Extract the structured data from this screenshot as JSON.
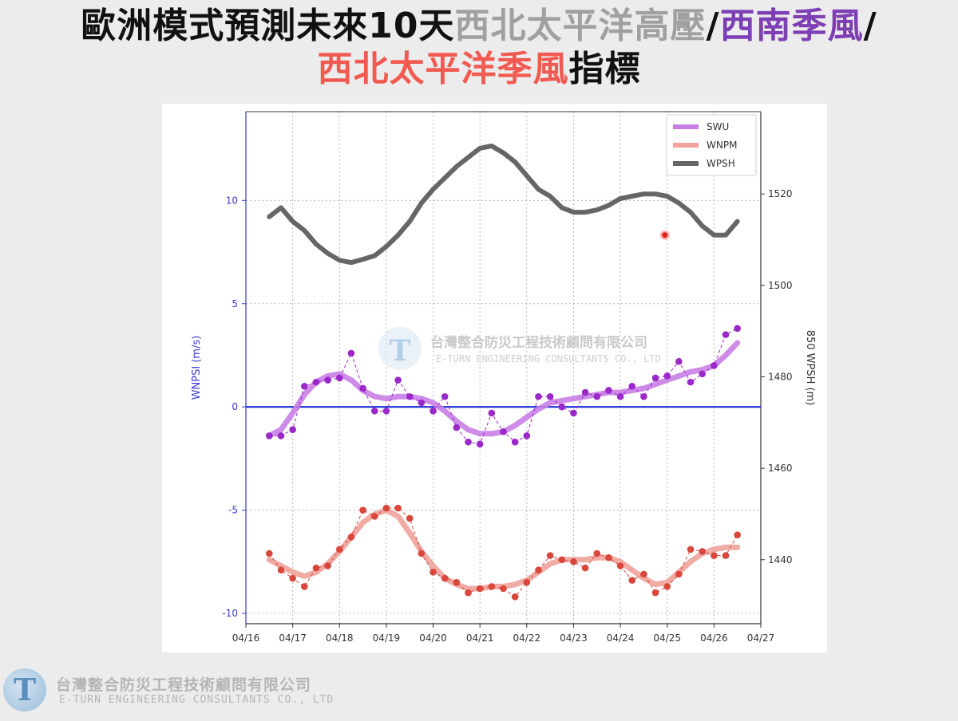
{
  "title": {
    "line1_black": "歐洲模式預測未來10天",
    "line1_gray": "西北太平洋高壓",
    "sep1": "/",
    "line1_purple": "西南季風",
    "sep2": "/",
    "line2_red": "西北太平洋季風",
    "line2_black": "指標",
    "colors": {
      "gray": "#a0a0a0",
      "purple": "#7d3fb3",
      "red": "#f05a50"
    }
  },
  "watermark": {
    "cn": "台灣整合防災工程技術顧問有限公司",
    "en": "E-TURN ENGINEERING CONSULTANTS CO., LTD"
  },
  "footer": {
    "logo_letter": "T",
    "cn": "台灣整合防災工程技術顧問有限公司",
    "en": "E-TURN ENGINEERING CONSULTANTS CO., LTD"
  },
  "chart_data": {
    "type": "line",
    "ylabel": "WNPSI (m/s)",
    "y2label": "850 WPSH (m)",
    "x_ticks": [
      "04/16",
      "04/17",
      "04/18",
      "04/19",
      "04/20",
      "04/21",
      "04/22",
      "04/23",
      "04/24",
      "04/25",
      "04/26",
      "04/27"
    ],
    "xlim": [
      0,
      11
    ],
    "ylim": [
      -10.5,
      14.3
    ],
    "y_ticks": [
      10,
      5,
      0,
      -5,
      -10
    ],
    "y2lim": [
      1426,
      1538
    ],
    "y2_ticks": [
      1520,
      1500,
      1480,
      1460,
      1440
    ],
    "zero_line": 0,
    "grid": true,
    "legend_position": "top-right",
    "series": [
      {
        "name": "SWU",
        "axis": "left",
        "color": "#c97fe6",
        "smooth_x": [
          0.5,
          0.75,
          1.0,
          1.25,
          1.5,
          1.75,
          2.0,
          2.25,
          2.5,
          2.75,
          3.0,
          3.25,
          3.5,
          3.75,
          4.0,
          4.25,
          4.5,
          4.75,
          5.0,
          5.25,
          5.5,
          5.75,
          6.0,
          6.25,
          6.5,
          6.75,
          7.0,
          7.25,
          7.5,
          7.75,
          8.0,
          8.25,
          8.5,
          8.75,
          9.0,
          9.25,
          9.5,
          9.75,
          10.0,
          10.25,
          10.5
        ],
        "smooth_y": [
          -1.4,
          -1.1,
          -0.3,
          0.6,
          1.2,
          1.5,
          1.6,
          1.3,
          0.8,
          0.5,
          0.4,
          0.5,
          0.5,
          0.4,
          0.2,
          -0.2,
          -0.7,
          -1.1,
          -1.3,
          -1.3,
          -1.2,
          -0.9,
          -0.5,
          -0.1,
          0.2,
          0.3,
          0.4,
          0.5,
          0.6,
          0.7,
          0.7,
          0.8,
          0.9,
          1.1,
          1.3,
          1.5,
          1.7,
          1.8,
          2.0,
          2.5,
          3.1
        ],
        "points_x": [
          0.5,
          0.75,
          1.0,
          1.25,
          1.5,
          1.75,
          2.0,
          2.25,
          2.5,
          2.75,
          3.0,
          3.25,
          3.5,
          3.75,
          4.0,
          4.25,
          4.5,
          4.75,
          5.0,
          5.25,
          5.5,
          5.75,
          6.0,
          6.25,
          6.5,
          6.75,
          7.0,
          7.25,
          7.5,
          7.75,
          8.0,
          8.25,
          8.5,
          8.75,
          9.0,
          9.25,
          9.5,
          9.75,
          10.0,
          10.25,
          10.5
        ],
        "points_y": [
          -1.4,
          -1.4,
          -1.1,
          1.0,
          1.2,
          1.3,
          1.4,
          2.6,
          0.9,
          -0.2,
          -0.2,
          1.3,
          0.5,
          0.2,
          -0.2,
          0.5,
          -1.0,
          -1.7,
          -1.8,
          -0.3,
          -1.2,
          -1.7,
          -1.4,
          0.5,
          0.5,
          0.0,
          -0.3,
          0.7,
          0.5,
          0.8,
          0.5,
          1.0,
          0.5,
          1.4,
          1.5,
          2.2,
          1.2,
          1.6,
          2.0,
          3.5,
          3.8
        ]
      },
      {
        "name": "WNPM",
        "axis": "left",
        "color": "#f0a29b",
        "smooth_x": [
          0.5,
          0.75,
          1.0,
          1.25,
          1.5,
          1.75,
          2.0,
          2.25,
          2.5,
          2.75,
          3.0,
          3.25,
          3.5,
          3.75,
          4.0,
          4.25,
          4.5,
          4.75,
          5.0,
          5.25,
          5.5,
          5.75,
          6.0,
          6.25,
          6.5,
          6.75,
          7.0,
          7.25,
          7.5,
          7.75,
          8.0,
          8.25,
          8.5,
          8.75,
          9.0,
          9.25,
          9.5,
          9.75,
          10.0,
          10.25,
          10.5
        ],
        "smooth_y": [
          -7.4,
          -7.7,
          -8.0,
          -8.2,
          -8.0,
          -7.6,
          -7.0,
          -6.3,
          -5.6,
          -5.2,
          -5.0,
          -5.3,
          -6.1,
          -7.0,
          -7.7,
          -8.3,
          -8.6,
          -8.8,
          -8.8,
          -8.7,
          -8.7,
          -8.6,
          -8.4,
          -8.0,
          -7.6,
          -7.4,
          -7.4,
          -7.4,
          -7.3,
          -7.3,
          -7.5,
          -7.9,
          -8.3,
          -8.6,
          -8.5,
          -8.0,
          -7.5,
          -7.1,
          -6.9,
          -6.8,
          -6.8
        ],
        "points_x": [
          0.5,
          0.75,
          1.0,
          1.25,
          1.5,
          1.75,
          2.0,
          2.25,
          2.5,
          2.75,
          3.0,
          3.25,
          3.5,
          3.75,
          4.0,
          4.25,
          4.5,
          4.75,
          5.0,
          5.25,
          5.5,
          5.75,
          6.0,
          6.25,
          6.5,
          6.75,
          7.0,
          7.25,
          7.5,
          7.75,
          8.0,
          8.25,
          8.5,
          8.75,
          9.0,
          9.25,
          9.5,
          9.75,
          10.0,
          10.25,
          10.5
        ],
        "points_y": [
          -7.1,
          -7.9,
          -8.3,
          -8.7,
          -7.8,
          -7.7,
          -6.9,
          -6.3,
          -5.0,
          -5.3,
          -4.9,
          -4.9,
          -5.4,
          -7.1,
          -8.0,
          -8.3,
          -8.5,
          -9.0,
          -8.8,
          -8.7,
          -8.8,
          -9.2,
          -8.5,
          -7.9,
          -7.2,
          -7.4,
          -7.5,
          -7.8,
          -7.1,
          -7.3,
          -7.7,
          -8.4,
          -8.1,
          -9.0,
          -8.7,
          -8.1,
          -6.9,
          -7.0,
          -7.2,
          -7.2,
          -6.2
        ]
      },
      {
        "name": "WPSH",
        "axis": "right",
        "color": "#666666",
        "smooth_x": [
          0.5,
          0.75,
          1.0,
          1.25,
          1.5,
          1.75,
          2.0,
          2.25,
          2.5,
          2.75,
          3.0,
          3.25,
          3.5,
          3.75,
          4.0,
          4.25,
          4.5,
          4.75,
          5.0,
          5.25,
          5.5,
          5.75,
          6.0,
          6.25,
          6.5,
          6.75,
          7.0,
          7.25,
          7.5,
          7.75,
          8.0,
          8.25,
          8.5,
          8.75,
          9.0,
          9.25,
          9.5,
          9.75,
          10.0,
          10.25,
          10.5
        ],
        "smooth_y": [
          1515,
          1517,
          1514,
          1512,
          1509,
          1507,
          1505.5,
          1505,
          1505.7,
          1506.5,
          1508.5,
          1511,
          1514,
          1518,
          1521,
          1523.5,
          1526,
          1528,
          1530,
          1530.5,
          1529,
          1527,
          1524,
          1521,
          1519.5,
          1517,
          1516,
          1516,
          1516.5,
          1517.5,
          1519,
          1519.5,
          1520,
          1520,
          1519.5,
          1518,
          1516,
          1513,
          1511,
          1511,
          1514
        ]
      }
    ],
    "annotation_marker": {
      "x": 8.95,
      "y2": 1511,
      "color": "#e02020"
    }
  }
}
